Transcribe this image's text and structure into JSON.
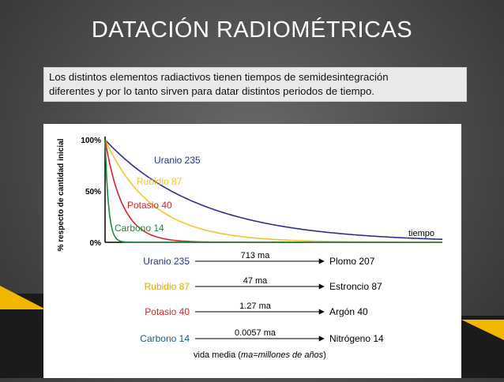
{
  "slide": {
    "title": "DATACIÓN RADIOMÉTRICAS",
    "subtitle_line1": "Los distintos elementos radiactivos tienen tiempos de semidesintegración",
    "subtitle_line2": "diferentes y por lo tanto sirven para datar distintos periodos de tiempo."
  },
  "colors": {
    "accent_gold": "#f2b800",
    "uranio": "#2d2f8f",
    "rubidio": "#f4c430",
    "potasio": "#d8232a",
    "carbono": "#1b8a3a"
  },
  "chart_data": {
    "type": "line",
    "ylabel": "% respecto de cantidad inicial",
    "xlabel": "tiempo",
    "yticks": [
      "100%",
      "50%",
      "0%"
    ],
    "ylim": [
      0,
      100
    ],
    "grid": false,
    "series": [
      {
        "name": "Uranio 235",
        "half_life_fraction": 0.196,
        "label_color": "#2d2f8f"
      },
      {
        "name": "Rubidio 87",
        "half_life_fraction": 0.097,
        "label_color": "#f4c430"
      },
      {
        "name": "Potasio 40",
        "half_life_fraction": 0.036,
        "label_color": "#d8232a"
      },
      {
        "name": "Carbono 14",
        "half_life_fraction": 0.007,
        "label_color": "#1b8a3a"
      }
    ],
    "decay_table": [
      {
        "parent": "Uranio 235",
        "half_life": "713 ma",
        "daughter": "Plomo 207",
        "color": "#2d2f8f"
      },
      {
        "parent": "Rubidio 87",
        "half_life": "47 ma",
        "daughter": "Estroncio 87",
        "color": "#e0a800"
      },
      {
        "parent": "Potasio 40",
        "half_life": "1.27 ma",
        "daughter": "Argón 40",
        "color": "#d8232a"
      },
      {
        "parent": "Carbono 14",
        "half_life": "0.0057 ma",
        "daughter": "Nitrógeno 14",
        "color": "#1b5a8a"
      }
    ],
    "footnote_prefix": "vida media (",
    "footnote_italic": "ma=millones de años",
    "footnote_suffix": ")"
  }
}
